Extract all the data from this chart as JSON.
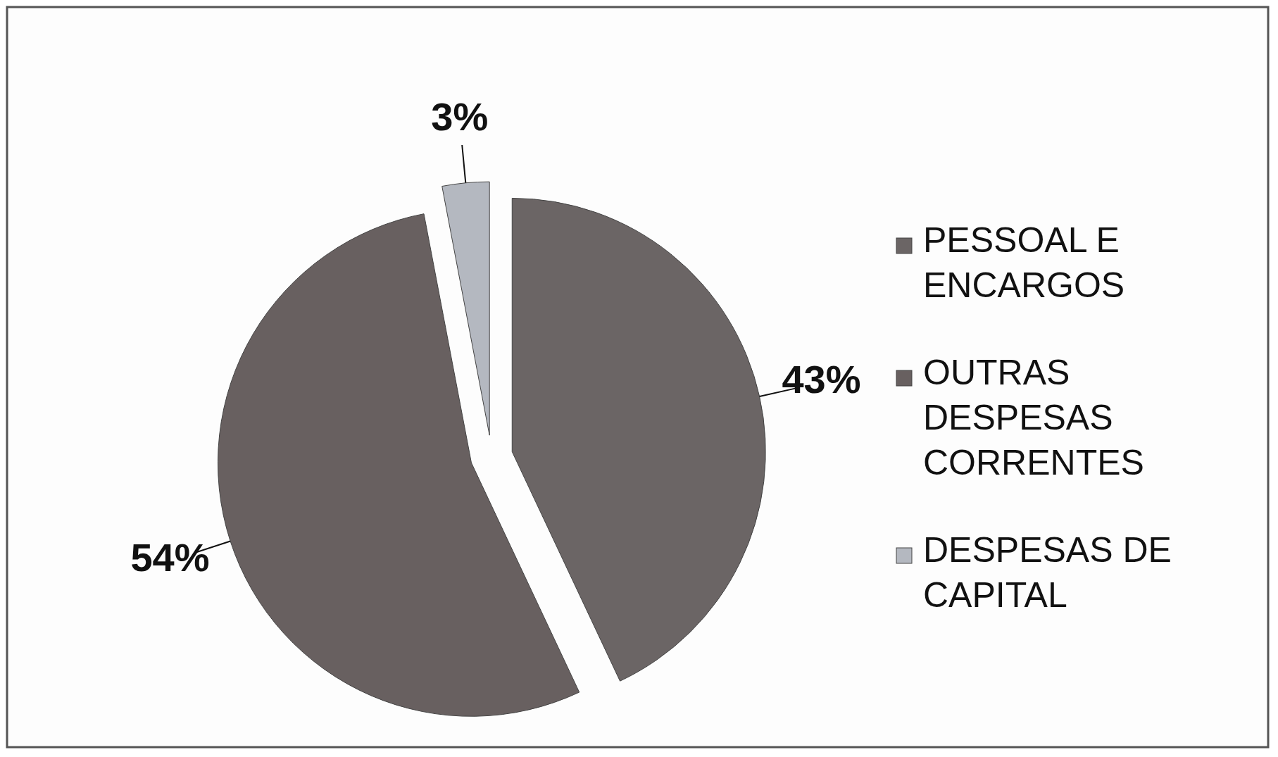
{
  "chart_data": {
    "type": "pie",
    "categories": [
      "PESSOAL E ENCARGOS",
      "OUTRAS DESPESAS CORRENTES",
      "DESPESAS DE CAPITAL"
    ],
    "values": [
      43,
      54,
      3
    ],
    "colors": [
      "#6b6565",
      "#686060",
      "#b4b8c0"
    ],
    "value_labels": [
      "43%",
      "54%",
      "3%"
    ],
    "legend": "right"
  }
}
